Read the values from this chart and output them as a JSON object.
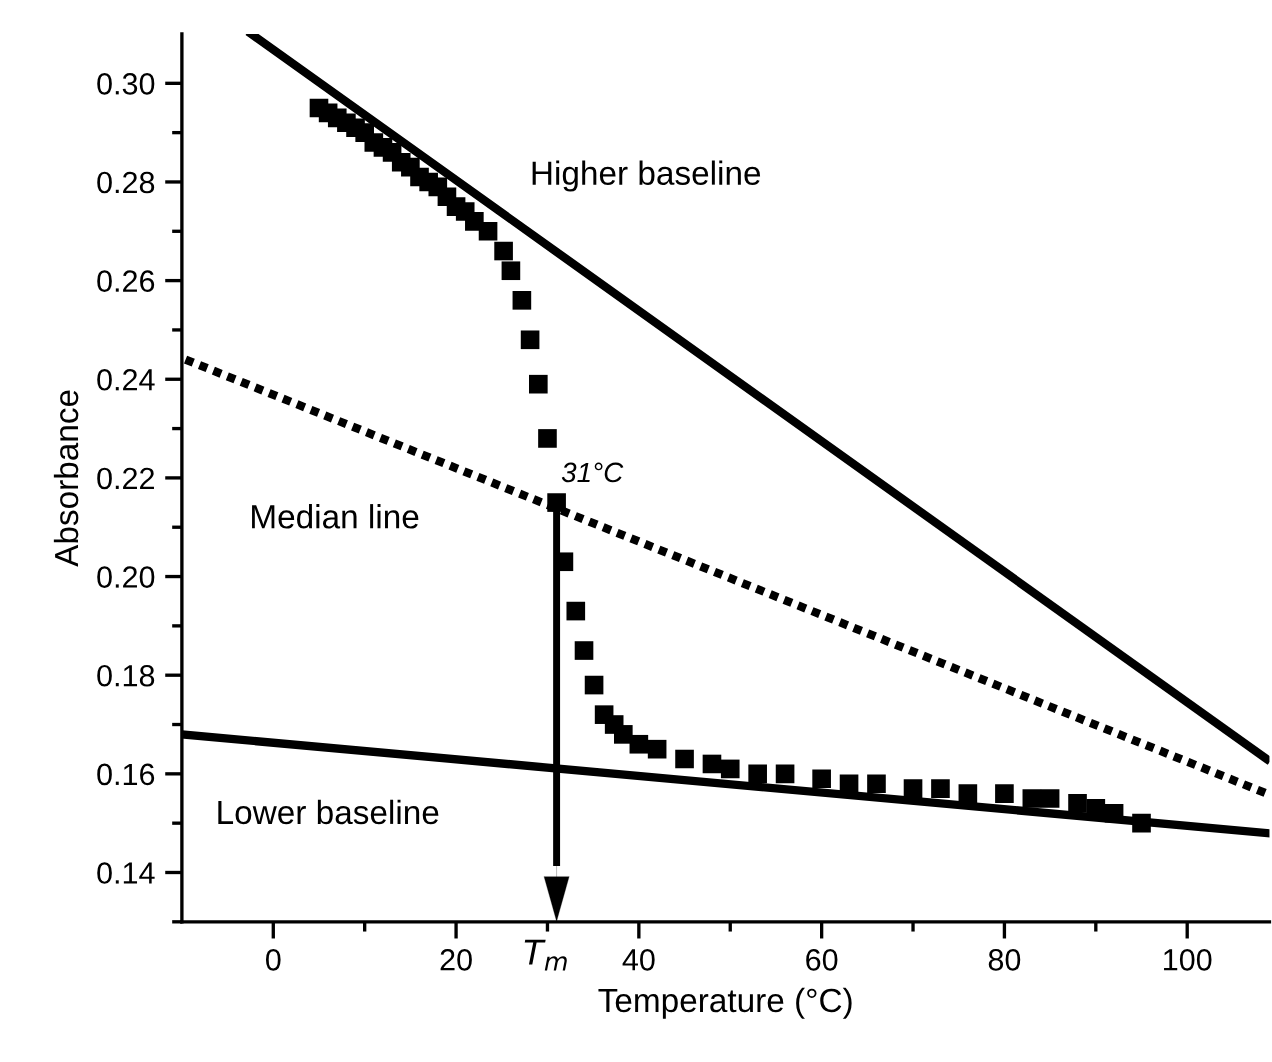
{
  "chart_data": {
    "type": "scatter",
    "xlabel": "Temperature (°C)",
    "ylabel": "Absorbance",
    "xlim": [
      -10,
      109
    ],
    "ylim": [
      0.13,
      0.31
    ],
    "xticks": [
      0,
      {
        "value": 10,
        "label": null
      },
      20,
      {
        "value": 30,
        "label": null
      },
      40,
      {
        "value": 50,
        "label": null
      },
      60,
      {
        "value": 70,
        "label": null
      },
      80,
      {
        "value": 90,
        "label": null
      },
      100
    ],
    "yticks": [
      {
        "value": 0.13,
        "label": null
      },
      0.14,
      {
        "value": 0.15,
        "label": null
      },
      0.16,
      {
        "value": 0.17,
        "label": null
      },
      0.18,
      {
        "value": 0.19,
        "label": null
      },
      {
        "value": 0.2,
        "label": "0.20"
      },
      {
        "value": 0.21,
        "label": null
      },
      0.22,
      {
        "value": 0.23,
        "label": null
      },
      0.24,
      {
        "value": 0.25,
        "label": null
      },
      0.26,
      {
        "value": 0.27,
        "label": null
      },
      0.28,
      {
        "value": 0.29,
        "label": null
      },
      {
        "value": 0.3,
        "label": "0.30"
      }
    ],
    "grid": false,
    "legend": false,
    "series": [
      {
        "type": "line",
        "color": "#000000",
        "line_style": "solid",
        "x": [
          -2.4,
          108.7
        ],
        "values": [
          0.31,
          0.163
        ]
      },
      {
        "type": "line",
        "color": "#000000",
        "line_style": "dotted",
        "x": [
          -9.6,
          108.7
        ],
        "values": [
          0.244,
          0.156
        ]
      },
      {
        "type": "line",
        "color": "#000000",
        "line_style": "solid",
        "x": [
          -10,
          108.7
        ],
        "values": [
          0.168,
          0.148
        ]
      },
      {
        "color": "#000000",
        "marker": "square",
        "x": [
          5,
          6,
          7,
          8,
          9,
          10,
          11,
          12,
          13,
          14,
          15,
          16,
          17,
          18,
          19,
          20,
          21,
          22,
          23.5,
          25.2,
          26,
          27.2,
          28.1,
          29,
          30,
          31,
          31.8,
          33.1,
          34,
          35.1,
          36.2,
          37.3,
          38.3,
          40,
          42,
          45,
          48,
          50,
          53,
          56,
          60,
          63,
          66,
          70,
          73,
          76,
          80,
          83,
          85,
          88,
          90,
          92,
          95
        ],
        "values": [
          0.295,
          0.294,
          0.293,
          0.292,
          0.291,
          0.29,
          0.288,
          0.287,
          0.286,
          0.284,
          0.283,
          0.281,
          0.28,
          0.279,
          0.277,
          0.275,
          0.274,
          0.272,
          0.27,
          0.266,
          0.262,
          0.256,
          0.248,
          0.239,
          0.228,
          0.215,
          0.203,
          0.193,
          0.185,
          0.178,
          0.172,
          0.17,
          0.168,
          0.166,
          0.165,
          0.163,
          0.162,
          0.161,
          0.16,
          0.16,
          0.159,
          0.158,
          0.158,
          0.157,
          0.157,
          0.156,
          0.156,
          0.155,
          0.155,
          0.154,
          0.153,
          0.152,
          0.15
        ]
      }
    ],
    "annotations": [
      "Higher baseline",
      "Median line",
      "Lower baseline",
      {
        "text": "31°C",
        "x": 31,
        "y": 0.215
      }
    ],
    "ref_lines": [
      {
        "axis": "x",
        "value": 31,
        "label": "T$_{m}$",
        "color": "#000000"
      }
    ]
  }
}
